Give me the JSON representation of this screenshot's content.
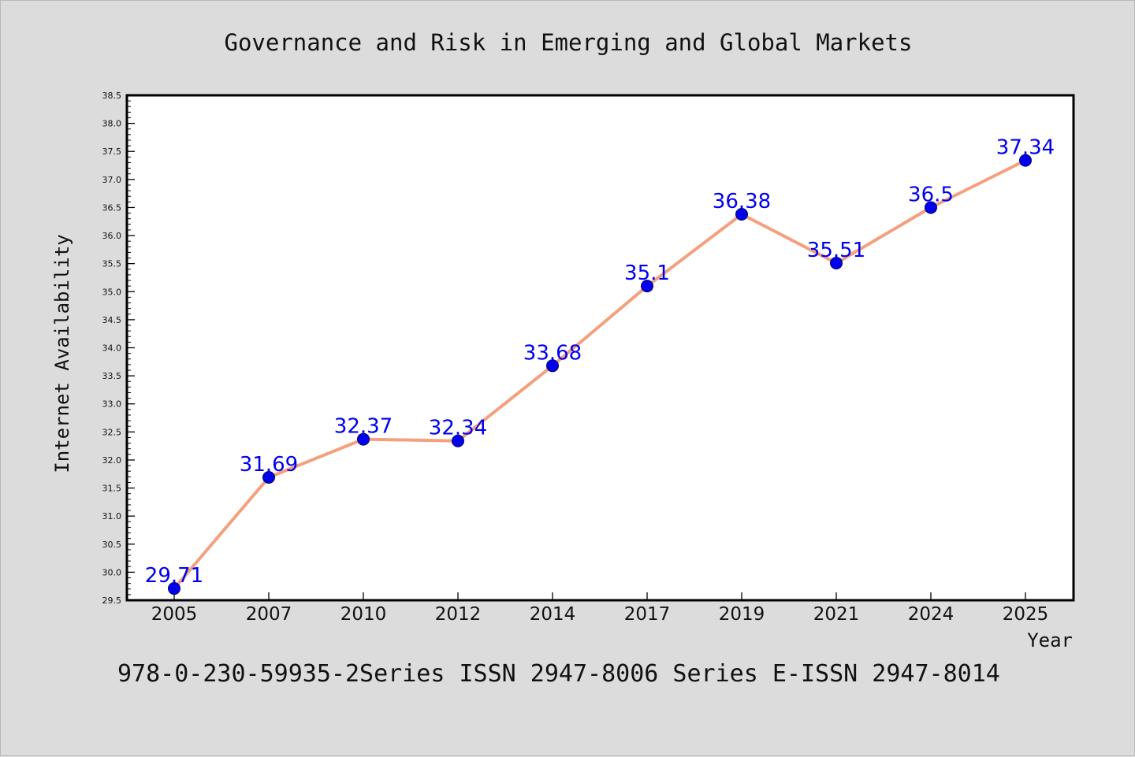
{
  "chart_data": {
    "type": "line",
    "title": "Governance and Risk in Emerging and Global Markets",
    "xlabel": "Year",
    "ylabel": "Internet Availability",
    "footer": "978-0-230-59935-2Series ISSN 2947-8006 Series E-ISSN 2947-8014",
    "categories": [
      "2005",
      "2007",
      "2010",
      "2012",
      "2014",
      "2017",
      "2019",
      "2021",
      "2024",
      "2025"
    ],
    "values": [
      29.71,
      31.69,
      32.37,
      32.34,
      33.68,
      35.1,
      36.38,
      35.51,
      36.5,
      37.34
    ],
    "data_labels": [
      "29.71",
      "31.69",
      "32.37",
      "32.34",
      "33.68",
      "35.1",
      "36.38",
      "35.51",
      "36.5",
      "37.34"
    ],
    "ylim": [
      29.5,
      38.5
    ],
    "yticks": [
      "29.5",
      "30.0",
      "30.5",
      "31.0",
      "31.5",
      "32.0",
      "32.5",
      "33.0",
      "33.5",
      "34.0",
      "34.5",
      "35.0",
      "35.5",
      "36.0",
      "36.5",
      "37.0",
      "37.5",
      "38.0",
      "38.5"
    ],
    "grid": false,
    "colors": {
      "line": "#f4a07e",
      "marker": "#0000ee",
      "label": "#0000ee",
      "background": "#dcdcdc",
      "plot_background": "#ffffff"
    }
  }
}
